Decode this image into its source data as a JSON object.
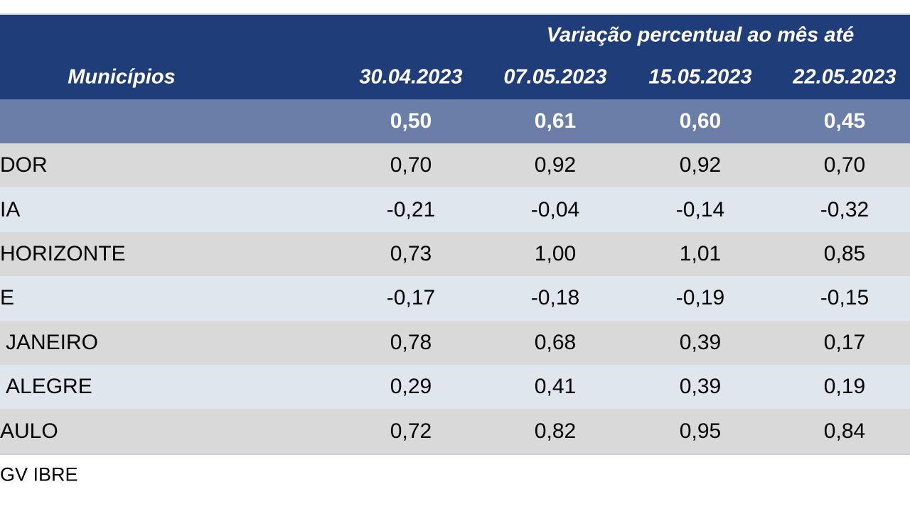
{
  "header": {
    "group_title": "Variação percentual ao mês até",
    "row_label": "Municípios",
    "dates": [
      "30.04.2023",
      "07.05.2023",
      "15.05.2023",
      "22.05.2023"
    ]
  },
  "summary": {
    "values": [
      "0,50",
      "0,61",
      "0,60",
      "0,45"
    ]
  },
  "rows": [
    {
      "label": "DOR",
      "values": [
        "0,70",
        "0,92",
        "0,92",
        "0,70"
      ]
    },
    {
      "label": "IA",
      "values": [
        "-0,21",
        "-0,04",
        "-0,14",
        "-0,32"
      ]
    },
    {
      "label": "HORIZONTE",
      "values": [
        "0,73",
        "1,00",
        "1,01",
        "0,85"
      ]
    },
    {
      "label": "E",
      "values": [
        "-0,17",
        "-0,18",
        "-0,19",
        "-0,15"
      ]
    },
    {
      "label": "JANEIRO",
      "values": [
        "0,78",
        "0,68",
        "0,39",
        "0,17"
      ]
    },
    {
      "label": "ALEGRE",
      "values": [
        "0,29",
        "0,41",
        "0,39",
        "0,19"
      ]
    },
    {
      "label": "AULO",
      "values": [
        "0,72",
        "0,82",
        "0,95",
        "0,84"
      ]
    }
  ],
  "footer": {
    "source": "GV IBRE"
  }
}
